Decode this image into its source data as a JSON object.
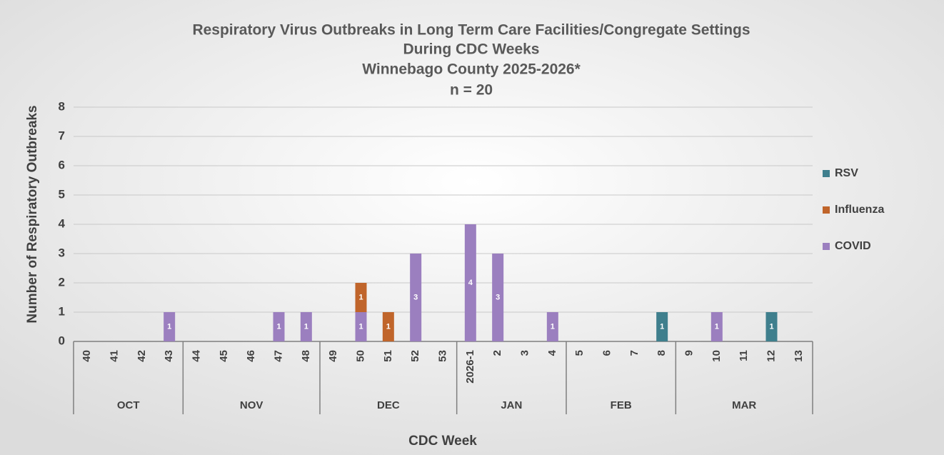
{
  "chart_data": {
    "type": "stacked_bar",
    "title": [
      "Respiratory Virus Outbreaks in Long Term Care Facilities/Congregate Settings",
      "During CDC Weeks",
      "Winnebago County 2025-2026*",
      "n = 20"
    ],
    "x_label": "CDC Week",
    "y_label": "Number of Respiratory Outbreaks",
    "groups": [
      {
        "label": "OCT",
        "categories": [
          "40",
          "41",
          "42",
          "43"
        ]
      },
      {
        "label": "NOV",
        "categories": [
          "44",
          "45",
          "46",
          "47",
          "48"
        ]
      },
      {
        "label": "DEC",
        "categories": [
          "49",
          "50",
          "51",
          "52",
          "53"
        ]
      },
      {
        "label": "JAN",
        "categories": [
          "2026-1",
          "2",
          "3",
          "4"
        ]
      },
      {
        "label": "FEB",
        "categories": [
          "5",
          "6",
          "7",
          "8"
        ]
      },
      {
        "label": "MAR",
        "categories": [
          "9",
          "10",
          "11",
          "12",
          "13"
        ]
      }
    ],
    "series": [
      {
        "name": "COVID",
        "color": "#9b7fbf",
        "values": [
          0,
          0,
          0,
          1,
          0,
          0,
          0,
          1,
          1,
          0,
          1,
          0,
          3,
          0,
          4,
          3,
          0,
          1,
          0,
          0,
          0,
          0,
          0,
          1,
          0,
          0,
          0
        ]
      },
      {
        "name": "Influenza",
        "color": "#c0652b",
        "values": [
          0,
          0,
          0,
          0,
          0,
          0,
          0,
          0,
          0,
          0,
          1,
          1,
          0,
          0,
          0,
          0,
          0,
          0,
          0,
          0,
          0,
          0,
          0,
          0,
          0,
          0,
          0
        ]
      },
      {
        "name": "RSV",
        "color": "#3f7f8d",
        "values": [
          0,
          0,
          0,
          0,
          0,
          0,
          0,
          0,
          0,
          0,
          0,
          0,
          0,
          0,
          0,
          0,
          0,
          0,
          0,
          0,
          0,
          1,
          0,
          0,
          0,
          1,
          0
        ]
      }
    ],
    "ylim": [
      0,
      8
    ],
    "yticks": [
      0,
      1,
      2,
      3,
      4,
      5,
      6,
      7,
      8
    ],
    "grid": true,
    "legend": "right"
  }
}
